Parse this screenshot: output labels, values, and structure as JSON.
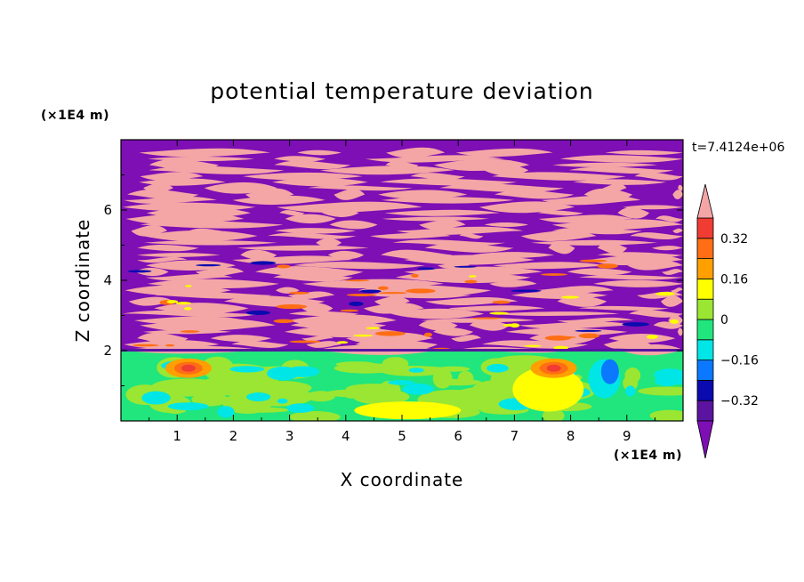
{
  "chart_data": {
    "type": "heatmap",
    "title": "potential temperature deviation",
    "xlabel": "X coordinate",
    "ylabel": "Z coordinate",
    "x_unit": "(×1E4 m)",
    "y_unit": "(×1E4 m)",
    "time_stamp": "t=7.4124e+06",
    "xlim": [
      0,
      10
    ],
    "ylim": [
      0,
      8
    ],
    "x_ticks": [
      "1",
      "2",
      "3",
      "4",
      "5",
      "6",
      "7",
      "8",
      "9"
    ],
    "y_ticks": [
      "2",
      "4",
      "6"
    ],
    "colorbar": {
      "levels": [
        -0.4,
        -0.32,
        -0.24,
        -0.16,
        -0.08,
        0,
        0.08,
        0.16,
        0.24,
        0.32,
        0.4
      ],
      "labels": [
        "0.32",
        "0.16",
        "0",
        "-0.16",
        "-0.32"
      ],
      "colors": {
        "above_max": "#F4A6A6",
        "band_0.32_0.4": "#F03C32",
        "band_0.24_0.32": "#FF6E14",
        "band_0.16_0.24": "#FFA000",
        "band_0.08_0.16": "#FFFF00",
        "band_0_0.08": "#9BE632",
        "band_-0.08_0": "#20E67D",
        "band_-0.16_-0.08": "#00E6E6",
        "band_-0.24_-0.16": "#0A78FF",
        "band_-0.32_-0.24": "#0A0AAF",
        "band_-0.4_-0.32": "#5A14A0",
        "below_min": "#7D0FB4"
      }
    },
    "field_summary": {
      "upper_layer": "alternating bands near +0.4 and below -0.4 above z≈2",
      "lower_layer": "values near 0 to +0.16 below z≈2 with warm anomalies near x≈1.2 and x≈7.7"
    }
  }
}
